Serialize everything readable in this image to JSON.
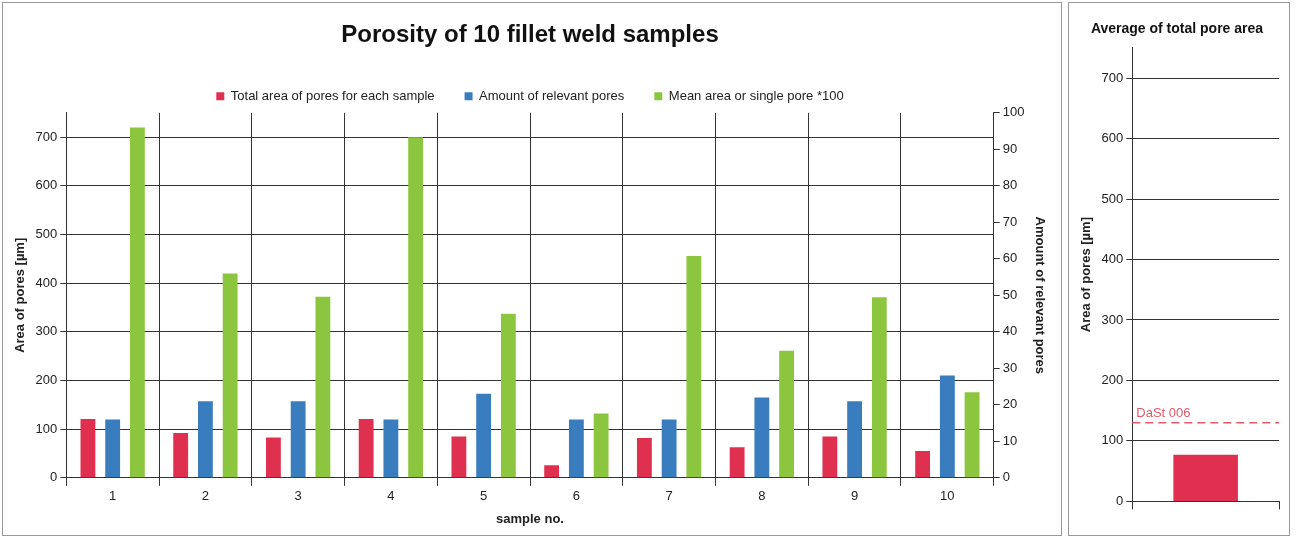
{
  "chart_data": [
    {
      "type": "bar",
      "title": "Porosity of 10 fillet weld samples",
      "xlabel": "sample no.",
      "ylabel": "Area of pores [µm]",
      "y2label": "Amount of relevant pores",
      "categories": [
        "1",
        "2",
        "3",
        "4",
        "5",
        "6",
        "7",
        "8",
        "9",
        "10"
      ],
      "series": [
        {
          "name": "Total area of pores for each sample",
          "color": "#e0304f",
          "values": [
            121,
            92,
            83,
            121,
            85,
            26,
            82,
            63,
            85,
            55
          ]
        },
        {
          "name": "Amount of relevant pores",
          "color": "#3a7dbf",
          "axis": "y2",
          "values": [
            16,
            21,
            21,
            16,
            23,
            16,
            16,
            22,
            21,
            28
          ]
        },
        {
          "name": "Mean area or single pore *100",
          "color": "#8cc63f",
          "values": [
            720,
            420,
            372,
            700,
            337,
            132,
            456,
            261,
            371,
            176
          ]
        }
      ],
      "ylim": [
        0,
        750
      ],
      "yticks": [
        0,
        100,
        200,
        300,
        400,
        500,
        600,
        700
      ],
      "y2lim": [
        0,
        100
      ],
      "y2ticks": [
        0,
        10,
        20,
        30,
        40,
        50,
        60,
        70,
        80,
        90,
        100
      ],
      "grid": true,
      "legend": "top"
    },
    {
      "type": "bar",
      "title": "Average of total pore area",
      "ylabel": "Area of pores [µm]",
      "categories": [
        null
      ],
      "values": [
        77
      ],
      "color": "#e0304f",
      "ylim": [
        0,
        750
      ],
      "yticks": [
        0,
        100,
        200,
        300,
        400,
        500,
        600,
        700
      ],
      "ref_lines": [
        {
          "axis": "y",
          "value": 130,
          "label": "DaSt 006",
          "color": "#e05a6a",
          "line_style": "dashed"
        }
      ],
      "grid": "y"
    }
  ]
}
